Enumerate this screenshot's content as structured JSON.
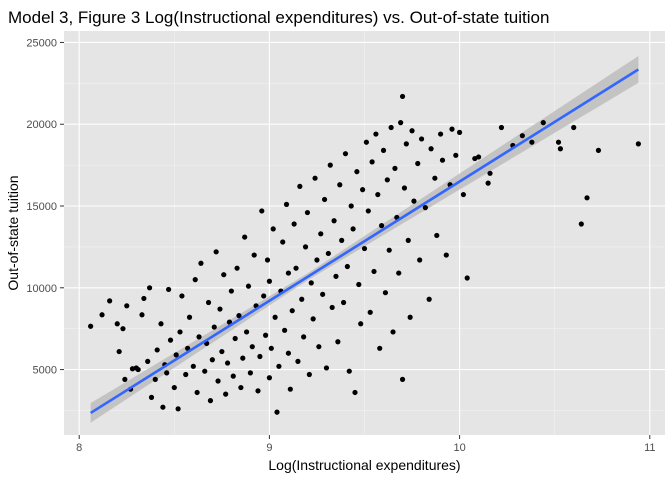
{
  "chart_data": {
    "type": "scatter",
    "title": "Model 3, Figure 3 Log(Instructional expenditures) vs. Out-of-state tuition",
    "xlabel": "Log(Instructional expenditures)",
    "ylabel": "Out-of-state tuition",
    "xlim": [
      7.92,
      11.08
    ],
    "ylim": [
      1000,
      25700
    ],
    "x_ticks": [
      8,
      9,
      10,
      11
    ],
    "x_tick_labels": [
      "8",
      "9",
      "10",
      "11"
    ],
    "y_ticks": [
      5000,
      10000,
      15000,
      20000,
      25000
    ],
    "y_tick_labels": [
      "5000",
      "10000",
      "15000",
      "20000",
      "25000"
    ],
    "grid": true,
    "legend": "none",
    "colors": {
      "panel": "#e5e5e5",
      "grid_major": "#ffffff",
      "grid_minor": "#f2f2f2",
      "points": "#000000",
      "fit_line": "#3366ff",
      "confidence_band": "#bdbdbd"
    },
    "fit": {
      "method": "linear",
      "x": [
        8.06,
        10.94
      ],
      "y": [
        2350,
        23350
      ],
      "band_halfwidth_at_x": [
        [
          8.06,
          600
        ],
        [
          9.2,
          210
        ],
        [
          10.94,
          820
        ]
      ]
    },
    "points": [
      [
        8.06,
        7650
      ],
      [
        8.12,
        8350
      ],
      [
        8.16,
        9200
      ],
      [
        8.2,
        7800
      ],
      [
        8.21,
        6100
      ],
      [
        8.23,
        7500
      ],
      [
        8.24,
        4400
      ],
      [
        8.25,
        8900
      ],
      [
        8.27,
        3800
      ],
      [
        8.28,
        5050
      ],
      [
        8.3,
        5100
      ],
      [
        8.31,
        5000
      ],
      [
        8.33,
        8350
      ],
      [
        8.34,
        9350
      ],
      [
        8.36,
        5500
      ],
      [
        8.37,
        10000
      ],
      [
        8.38,
        3300
      ],
      [
        8.4,
        4400
      ],
      [
        8.41,
        6200
      ],
      [
        8.43,
        7800
      ],
      [
        8.44,
        2700
      ],
      [
        8.45,
        5300
      ],
      [
        8.46,
        4800
      ],
      [
        8.47,
        9900
      ],
      [
        8.48,
        6800
      ],
      [
        8.5,
        3900
      ],
      [
        8.51,
        5900
      ],
      [
        8.52,
        2600
      ],
      [
        8.53,
        7300
      ],
      [
        8.54,
        9500
      ],
      [
        8.56,
        4700
      ],
      [
        8.57,
        6300
      ],
      [
        8.58,
        8200
      ],
      [
        8.6,
        5200
      ],
      [
        8.61,
        10500
      ],
      [
        8.62,
        3600
      ],
      [
        8.63,
        7000
      ],
      [
        8.64,
        11500
      ],
      [
        8.66,
        4900
      ],
      [
        8.67,
        6600
      ],
      [
        8.68,
        9100
      ],
      [
        8.69,
        3100
      ],
      [
        8.7,
        5600
      ],
      [
        8.71,
        7600
      ],
      [
        8.72,
        12200
      ],
      [
        8.73,
        4300
      ],
      [
        8.74,
        8700
      ],
      [
        8.75,
        6100
      ],
      [
        8.76,
        10800
      ],
      [
        8.77,
        3500
      ],
      [
        8.78,
        5400
      ],
      [
        8.79,
        7900
      ],
      [
        8.8,
        9800
      ],
      [
        8.81,
        4600
      ],
      [
        8.82,
        6900
      ],
      [
        8.83,
        11200
      ],
      [
        8.84,
        8300
      ],
      [
        8.85,
        3900
      ],
      [
        8.86,
        5700
      ],
      [
        8.87,
        13100
      ],
      [
        8.88,
        7300
      ],
      [
        8.89,
        10100
      ],
      [
        8.9,
        4800
      ],
      [
        8.91,
        6400
      ],
      [
        8.92,
        12000
      ],
      [
        8.93,
        8900
      ],
      [
        8.94,
        3700
      ],
      [
        8.95,
        5800
      ],
      [
        8.96,
        14700
      ],
      [
        8.97,
        9500
      ],
      [
        8.98,
        7100
      ],
      [
        8.99,
        11700
      ],
      [
        9.0,
        4500
      ],
      [
        9.0,
        10400
      ],
      [
        9.01,
        6300
      ],
      [
        9.02,
        13600
      ],
      [
        9.03,
        8200
      ],
      [
        9.04,
        2400
      ],
      [
        9.05,
        5200
      ],
      [
        9.06,
        9800
      ],
      [
        9.07,
        12800
      ],
      [
        9.08,
        7400
      ],
      [
        9.09,
        15100
      ],
      [
        9.1,
        6000
      ],
      [
        9.1,
        10900
      ],
      [
        9.11,
        3800
      ],
      [
        9.12,
        8600
      ],
      [
        9.13,
        13900
      ],
      [
        9.14,
        11200
      ],
      [
        9.15,
        5500
      ],
      [
        9.16,
        16200
      ],
      [
        9.17,
        9300
      ],
      [
        9.18,
        7000
      ],
      [
        9.19,
        12500
      ],
      [
        9.2,
        14600
      ],
      [
        9.21,
        4700
      ],
      [
        9.22,
        10300
      ],
      [
        9.23,
        8100
      ],
      [
        9.24,
        16700
      ],
      [
        9.25,
        11700
      ],
      [
        9.26,
        6400
      ],
      [
        9.27,
        13300
      ],
      [
        9.28,
        9600
      ],
      [
        9.29,
        15400
      ],
      [
        9.3,
        5100
      ],
      [
        9.31,
        12100
      ],
      [
        9.32,
        17500
      ],
      [
        9.33,
        8800
      ],
      [
        9.34,
        14100
      ],
      [
        9.35,
        10700
      ],
      [
        9.36,
        6700
      ],
      [
        9.37,
        16300
      ],
      [
        9.38,
        12900
      ],
      [
        9.39,
        9100
      ],
      [
        9.4,
        18200
      ],
      [
        9.41,
        11300
      ],
      [
        9.42,
        4900
      ],
      [
        9.43,
        15000
      ],
      [
        9.44,
        13600
      ],
      [
        9.45,
        3600
      ],
      [
        9.46,
        17100
      ],
      [
        9.47,
        10200
      ],
      [
        9.48,
        7800
      ],
      [
        9.49,
        16000
      ],
      [
        9.5,
        12400
      ],
      [
        9.51,
        18900
      ],
      [
        9.52,
        14700
      ],
      [
        9.53,
        8500
      ],
      [
        9.54,
        17700
      ],
      [
        9.55,
        11000
      ],
      [
        9.56,
        19400
      ],
      [
        9.57,
        15700
      ],
      [
        9.58,
        6300
      ],
      [
        9.59,
        13800
      ],
      [
        9.6,
        18400
      ],
      [
        9.61,
        9700
      ],
      [
        9.62,
        16600
      ],
      [
        9.63,
        12300
      ],
      [
        9.64,
        19800
      ],
      [
        9.65,
        7300
      ],
      [
        9.66,
        17300
      ],
      [
        9.67,
        14300
      ],
      [
        9.68,
        10900
      ],
      [
        9.69,
        20100
      ],
      [
        9.7,
        21700
      ],
      [
        9.7,
        4400
      ],
      [
        9.71,
        16100
      ],
      [
        9.72,
        18800
      ],
      [
        9.73,
        12900
      ],
      [
        9.74,
        8200
      ],
      [
        9.75,
        19600
      ],
      [
        9.76,
        15300
      ],
      [
        9.78,
        17600
      ],
      [
        9.79,
        11700
      ],
      [
        9.8,
        19100
      ],
      [
        9.82,
        14900
      ],
      [
        9.84,
        9300
      ],
      [
        9.85,
        18500
      ],
      [
        9.87,
        16700
      ],
      [
        9.88,
        13200
      ],
      [
        9.9,
        19400
      ],
      [
        9.91,
        17800
      ],
      [
        9.93,
        12000
      ],
      [
        9.95,
        16300
      ],
      [
        9.96,
        19700
      ],
      [
        9.98,
        18100
      ],
      [
        10.0,
        19500
      ],
      [
        10.02,
        15700
      ],
      [
        10.04,
        10600
      ],
      [
        10.08,
        17900
      ],
      [
        10.1,
        18000
      ],
      [
        10.15,
        16400
      ],
      [
        10.16,
        17000
      ],
      [
        10.22,
        19800
      ],
      [
        10.28,
        18700
      ],
      [
        10.33,
        19300
      ],
      [
        10.38,
        18900
      ],
      [
        10.44,
        20100
      ],
      [
        10.52,
        18900
      ],
      [
        10.53,
        18500
      ],
      [
        10.6,
        19800
      ],
      [
        10.64,
        13900
      ],
      [
        10.67,
        15500
      ],
      [
        10.73,
        18400
      ],
      [
        10.94,
        18800
      ]
    ]
  }
}
